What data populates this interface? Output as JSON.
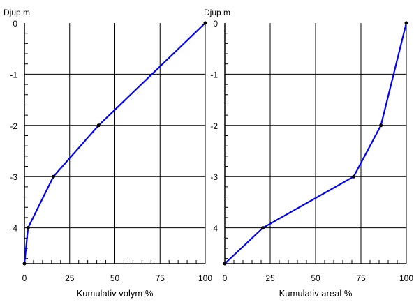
{
  "chart_data": [
    {
      "type": "line",
      "ylabel": "Djup m",
      "xlabel": "Kumulativ volym %",
      "xlim": [
        0,
        100
      ],
      "ylim": [
        -4.7,
        0
      ],
      "x_ticks": [
        0,
        25,
        50,
        75,
        100
      ],
      "y_ticks": [
        0,
        -1,
        -2,
        -3,
        -4
      ],
      "x_tick_labels": [
        "0",
        "25",
        "50",
        "75",
        "100"
      ],
      "y_tick_labels": [
        "0",
        "-1",
        "-2",
        "-3",
        "-4"
      ],
      "grid": true,
      "series": [
        {
          "color": "#0000ff",
          "marker_color": "#000000",
          "points": [
            {
              "x": 100,
              "y": 0
            },
            {
              "x": 41,
              "y": -2
            },
            {
              "x": 16,
              "y": -3
            },
            {
              "x": 2,
              "y": -4
            },
            {
              "x": 0,
              "y": -4.7
            }
          ]
        }
      ]
    },
    {
      "type": "line",
      "ylabel": "Djup m",
      "xlabel": "Kumulativ areal %",
      "xlim": [
        0,
        100
      ],
      "ylim": [
        -4.7,
        0
      ],
      "x_ticks": [
        0,
        25,
        50,
        75,
        100
      ],
      "y_ticks": [
        0,
        -1,
        -2,
        -3,
        -4
      ],
      "x_tick_labels": [
        "0",
        "25",
        "50",
        "75",
        "100"
      ],
      "y_tick_labels": [
        "0",
        "-1",
        "-2",
        "-3",
        "-4"
      ],
      "grid": true,
      "series": [
        {
          "color": "#0000ff",
          "marker_color": "#000000",
          "points": [
            {
              "x": 100,
              "y": 0
            },
            {
              "x": 86,
              "y": -2
            },
            {
              "x": 71,
              "y": -3
            },
            {
              "x": 21,
              "y": -4
            },
            {
              "x": 0,
              "y": -4.7
            }
          ]
        }
      ]
    }
  ]
}
